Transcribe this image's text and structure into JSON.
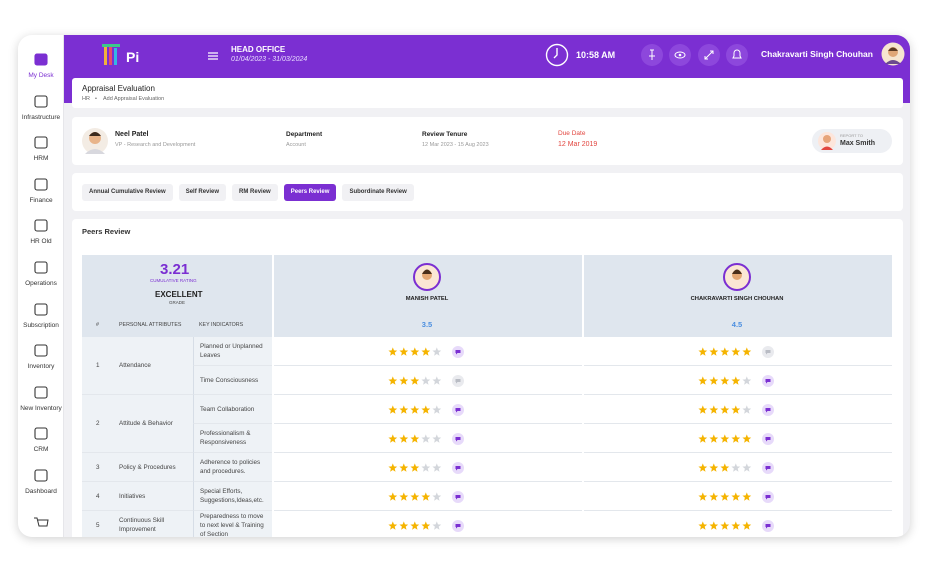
{
  "sidebar": {
    "items": [
      "My Desk",
      "Infrastructure",
      "HRM",
      "Finance",
      "HR Old",
      "Operations",
      "Subscription",
      "Inventory",
      "New Inventory",
      "CRM",
      "Dashboard"
    ],
    "active": 0
  },
  "header": {
    "logo": "Pi",
    "office": "HEAD OFFICE",
    "period": "01/04/2023 - 31/03/2024",
    "time": "10:58 AM",
    "user": "Chakravarti Singh Chouhan"
  },
  "breadcrumb": {
    "title": "Appraisal Evaluation",
    "path": [
      "HR",
      "Add Appraisal Evaluation"
    ]
  },
  "employee": {
    "name": "Neel Patel",
    "role": "VP - Research and Development",
    "department_label": "Department",
    "department": "Account",
    "tenure_label": "Review Tenure",
    "tenure": "12 Mar 2023 - 15 Aug 2023",
    "due_label": "Due Date",
    "due": "12 Mar 2019",
    "report_label": "REPORT TO",
    "report": "Max Smith"
  },
  "tabs": {
    "items": [
      "Annual Cumulative Review",
      "Self Review",
      "RM Review",
      "Peers Review",
      "Subordinate Review"
    ],
    "active": 3
  },
  "section": {
    "title": "Peers Review"
  },
  "summary": {
    "rating": 3.21,
    "rating_label": "CUMULATIVE RATING",
    "grade": "EXCELLENT",
    "grade_label": "GRADE"
  },
  "reviewers": [
    {
      "name": "MANISH PATEL",
      "score": 3.5
    },
    {
      "name": "CHAKRAVARTI SINGH CHOUHAN",
      "score": 4.5
    }
  ],
  "table": {
    "columns": [
      "#",
      "PERSONAL ATTRIBUTES",
      "KEY INDICATORS"
    ],
    "max_rating": 5,
    "groups": [
      {
        "number": 1,
        "attribute": "Attendance",
        "indicators": [
          {
            "label": "Planned or Unplanned Leaves",
            "ratings": [
              4,
              5
            ],
            "comments": [
              true,
              false
            ]
          },
          {
            "label": "Time Consciousness",
            "ratings": [
              3,
              4
            ],
            "comments": [
              false,
              true
            ]
          }
        ]
      },
      {
        "number": 2,
        "attribute": "Attitude & Behavior",
        "indicators": [
          {
            "label": "Team Collaboration",
            "ratings": [
              4,
              4
            ],
            "comments": [
              true,
              true
            ]
          },
          {
            "label": "Professionalism & Responsiveness",
            "ratings": [
              3,
              5
            ],
            "comments": [
              true,
              true
            ]
          }
        ]
      },
      {
        "number": 3,
        "attribute": "Policy & Procedures",
        "indicators": [
          {
            "label": "Adherence to policies and procedures.",
            "ratings": [
              3,
              3
            ],
            "comments": [
              true,
              true
            ]
          }
        ]
      },
      {
        "number": 4,
        "attribute": "Initiatives",
        "indicators": [
          {
            "label": "Special Efforts, Suggestions,Ideas,etc.",
            "ratings": [
              4,
              5
            ],
            "comments": [
              true,
              true
            ]
          }
        ]
      },
      {
        "number": 5,
        "attribute": "Continuous Skill Improvement",
        "indicators": [
          {
            "label": "Preparedness to move to next level & Training of Section",
            "ratings": [
              4,
              5
            ],
            "comments": [
              true,
              true
            ]
          }
        ]
      }
    ]
  }
}
